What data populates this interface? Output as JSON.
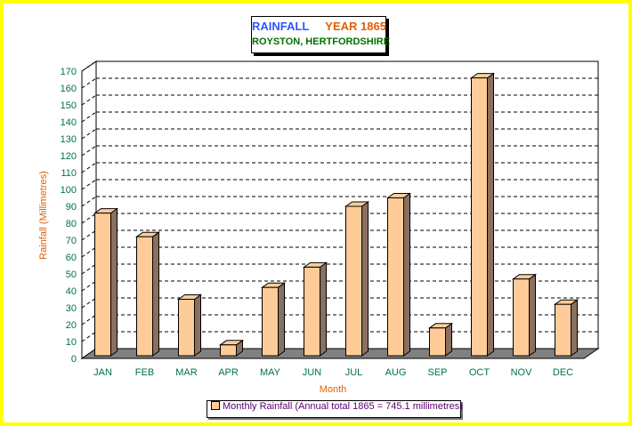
{
  "title": {
    "line1_a": "RAINFALL",
    "line1_b": "YEAR 1865",
    "line2": "ROYSTON, HERTFORDSHIRE"
  },
  "legend": {
    "label": "Monthly Rainfall (Annual total 1865 = 745.1 millimetres)"
  },
  "colors": {
    "frame": "#ffff00",
    "bar_front": "#ffcc99",
    "bar_side": "#8a7060",
    "floor": "#808080",
    "tick_text": "#007050",
    "axis_title": "#e06000"
  },
  "chart_data": {
    "type": "bar",
    "categories": [
      "JAN",
      "FEB",
      "MAR",
      "APR",
      "MAY",
      "JUN",
      "JUL",
      "AUG",
      "SEP",
      "OCT",
      "NOV",
      "DEC"
    ],
    "values": [
      86,
      72,
      35,
      8,
      42,
      54,
      90,
      95,
      18,
      166,
      47,
      32
    ],
    "xlabel": "Month",
    "ylabel": "Rainfall (Millimetres)",
    "ylim": [
      0,
      170
    ],
    "yticks": [
      "0",
      "10",
      "20",
      "30",
      "40",
      "50",
      "60",
      "70",
      "80",
      "90",
      "100",
      "110",
      "120",
      "130",
      "140",
      "150",
      "160",
      "170"
    ],
    "grid": true,
    "legend_position": "bottom",
    "series": [
      {
        "name": "Monthly Rainfall (Annual total 1865 = 745.1 millimetres)",
        "values": [
          86,
          72,
          35,
          8,
          42,
          54,
          90,
          95,
          18,
          166,
          47,
          32
        ]
      }
    ]
  }
}
